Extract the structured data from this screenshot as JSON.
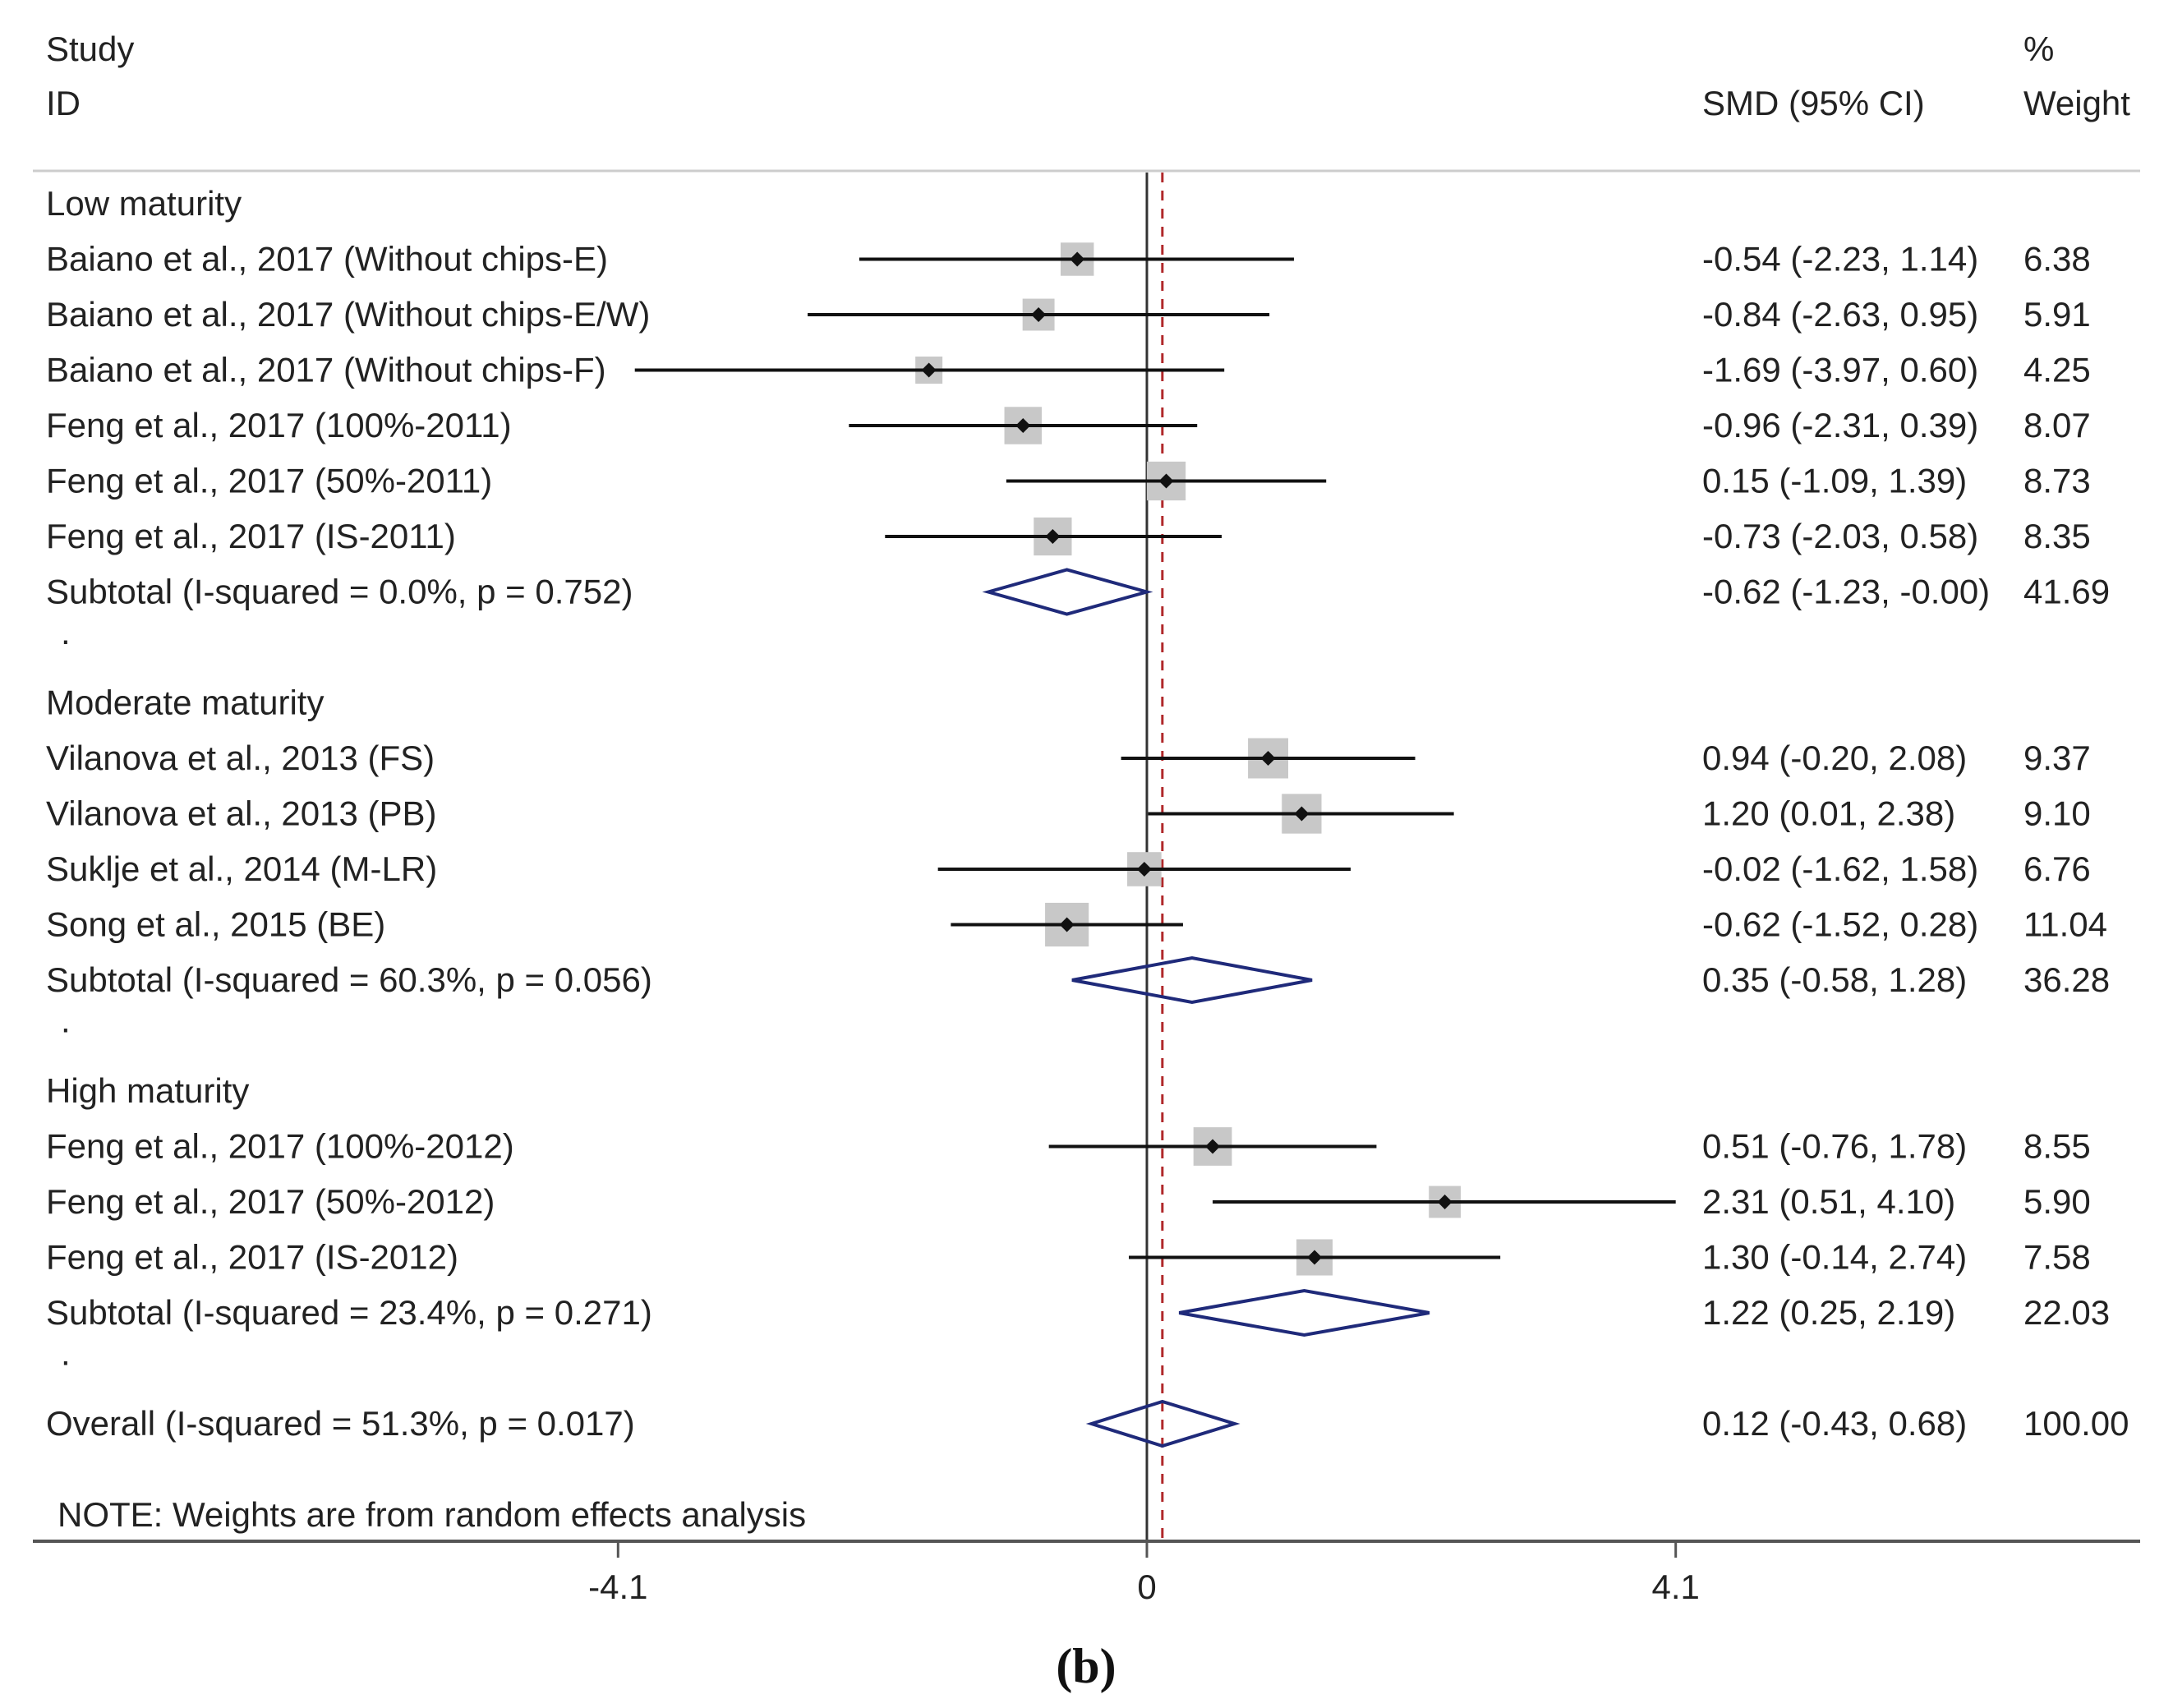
{
  "chart_data": {
    "type": "forest",
    "header": {
      "study_line1": "Study",
      "study_line2": "ID",
      "effect_header": "SMD (95% CI)",
      "weight_line1": "%",
      "weight_line2": "Weight"
    },
    "x_axis": {
      "min": -4.1,
      "max": 4.1,
      "ticks": [
        {
          "value": -4.1,
          "label": "-4.1"
        },
        {
          "value": 0,
          "label": "0"
        },
        {
          "value": 4.1,
          "label": "4.1"
        }
      ],
      "null_line": 0,
      "overall_reference": 0.12
    },
    "rows": [
      {
        "kind": "group",
        "label": "Low maturity"
      },
      {
        "kind": "study",
        "label": "Baiano et al., 2017 (Without chips-E)",
        "est": -0.54,
        "lo": -2.23,
        "hi": 1.14,
        "ci_text": "-0.54 (-2.23, 1.14)",
        "weight": 6.38,
        "weight_text": "6.38"
      },
      {
        "kind": "study",
        "label": "Baiano et al., 2017 (Without chips-E/W)",
        "est": -0.84,
        "lo": -2.63,
        "hi": 0.95,
        "ci_text": "-0.84 (-2.63, 0.95)",
        "weight": 5.91,
        "weight_text": "5.91"
      },
      {
        "kind": "study",
        "label": "Baiano et al., 2017 (Without chips-F)",
        "est": -1.69,
        "lo": -3.97,
        "hi": 0.6,
        "ci_text": "-1.69 (-3.97, 0.60)",
        "weight": 4.25,
        "weight_text": "4.25"
      },
      {
        "kind": "study",
        "label": "Feng et al., 2017 (100%-2011)",
        "est": -0.96,
        "lo": -2.31,
        "hi": 0.39,
        "ci_text": "-0.96 (-2.31, 0.39)",
        "weight": 8.07,
        "weight_text": "8.07"
      },
      {
        "kind": "study",
        "label": "Feng et al., 2017 (50%-2011)",
        "est": 0.15,
        "lo": -1.09,
        "hi": 1.39,
        "ci_text": "0.15 (-1.09, 1.39)",
        "weight": 8.73,
        "weight_text": "8.73"
      },
      {
        "kind": "study",
        "label": "Feng et al., 2017 (IS-2011)",
        "est": -0.73,
        "lo": -2.03,
        "hi": 0.58,
        "ci_text": "-0.73 (-2.03, 0.58)",
        "weight": 8.35,
        "weight_text": "8.35"
      },
      {
        "kind": "subtotal",
        "label": "Subtotal  (I-squared = 0.0%, p = 0.752)",
        "est": -0.62,
        "lo": -1.23,
        "hi": -0.0,
        "ci_text": "-0.62 (-1.23, -0.00)",
        "weight": 41.69,
        "weight_text": "41.69"
      },
      {
        "kind": "spacer",
        "label": "."
      },
      {
        "kind": "group",
        "label": "Moderate maturity"
      },
      {
        "kind": "study",
        "label": "Vilanova et al., 2013 (FS)",
        "est": 0.94,
        "lo": -0.2,
        "hi": 2.08,
        "ci_text": "0.94 (-0.20, 2.08)",
        "weight": 9.37,
        "weight_text": "9.37"
      },
      {
        "kind": "study",
        "label": "Vilanova et al., 2013 (PB)",
        "est": 1.2,
        "lo": 0.01,
        "hi": 2.38,
        "ci_text": "1.20 (0.01, 2.38)",
        "weight": 9.1,
        "weight_text": "9.10"
      },
      {
        "kind": "study",
        "label": "Suklje et al., 2014 (M-LR)",
        "est": -0.02,
        "lo": -1.62,
        "hi": 1.58,
        "ci_text": "-0.02 (-1.62, 1.58)",
        "weight": 6.76,
        "weight_text": "6.76"
      },
      {
        "kind": "study",
        "label": "Song et al., 2015 (BE)",
        "est": -0.62,
        "lo": -1.52,
        "hi": 0.28,
        "ci_text": "-0.62 (-1.52, 0.28)",
        "weight": 11.04,
        "weight_text": "11.04"
      },
      {
        "kind": "subtotal",
        "label": "Subtotal  (I-squared = 60.3%, p = 0.056)",
        "est": 0.35,
        "lo": -0.58,
        "hi": 1.28,
        "ci_text": "0.35 (-0.58, 1.28)",
        "weight": 36.28,
        "weight_text": "36.28"
      },
      {
        "kind": "spacer",
        "label": "."
      },
      {
        "kind": "group",
        "label": "High maturity"
      },
      {
        "kind": "study",
        "label": "Feng et al., 2017 (100%-2012)",
        "est": 0.51,
        "lo": -0.76,
        "hi": 1.78,
        "ci_text": "0.51 (-0.76, 1.78)",
        "weight": 8.55,
        "weight_text": "8.55"
      },
      {
        "kind": "study",
        "label": "Feng et al., 2017 (50%-2012)",
        "est": 2.31,
        "lo": 0.51,
        "hi": 4.1,
        "ci_text": "2.31 (0.51, 4.10)",
        "weight": 5.9,
        "weight_text": "5.90"
      },
      {
        "kind": "study",
        "label": "Feng et al., 2017 (IS-2012)",
        "est": 1.3,
        "lo": -0.14,
        "hi": 2.74,
        "ci_text": "1.30 (-0.14, 2.74)",
        "weight": 7.58,
        "weight_text": "7.58"
      },
      {
        "kind": "subtotal",
        "label": "Subtotal  (I-squared = 23.4%, p = 0.271)",
        "est": 1.22,
        "lo": 0.25,
        "hi": 2.19,
        "ci_text": "1.22 (0.25, 2.19)",
        "weight": 22.03,
        "weight_text": "22.03"
      },
      {
        "kind": "spacer",
        "label": "."
      },
      {
        "kind": "overall",
        "label": "Overall  (I-squared = 51.3%, p = 0.017)",
        "est": 0.12,
        "lo": -0.43,
        "hi": 0.68,
        "ci_text": "0.12 (-0.43, 0.68)",
        "weight": 100.0,
        "weight_text": "100.00"
      }
    ],
    "note": "NOTE: Weights are from random effects analysis",
    "caption": "(b)"
  },
  "colors": {
    "text": "#222222",
    "ci_line": "#111111",
    "weight_box": "#c8c8c8",
    "diamond": "#1f2a7a",
    "null_line": "#333333",
    "reference_line": "#b0282a",
    "rule": "#cccccc",
    "axis": "#555555"
  }
}
